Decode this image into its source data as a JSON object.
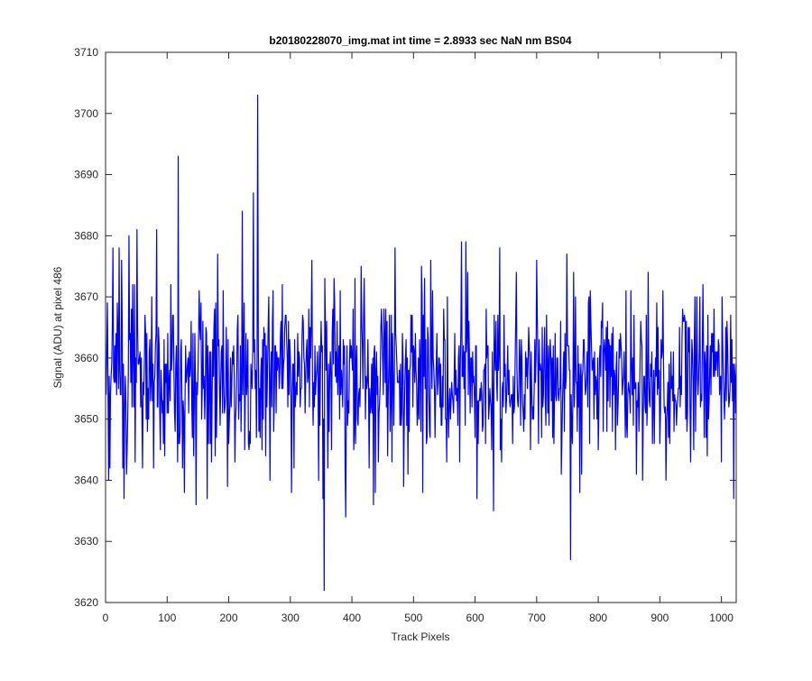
{
  "chart_data": {
    "type": "line",
    "title": "b20180228070_img.mat int time = 2.8933 sec  NaN nm BS04",
    "xlabel": "Track Pixels",
    "ylabel": "Signal (ADU) at pixel 486",
    "xlim": [
      0,
      1024
    ],
    "ylim": [
      3620,
      3710
    ],
    "x_ticks": [
      "0",
      "100",
      "200",
      "300",
      "400",
      "500",
      "600",
      "700",
      "800",
      "900",
      "1000"
    ],
    "y_ticks": [
      "3620",
      "3630",
      "3640",
      "3650",
      "3660",
      "3670",
      "3680",
      "3690",
      "3700",
      "3710"
    ],
    "grid": false,
    "legend": "none",
    "line_color": "#0000ff",
    "n_points": 1024,
    "x_start": 1,
    "x_step": 1,
    "summary": {
      "mean": 3657,
      "min": 3622,
      "max": 3703
    },
    "notable_points": [
      {
        "x": 3,
        "y": 3669
      },
      {
        "x": 7,
        "y": 3642
      },
      {
        "x": 12,
        "y": 3678
      },
      {
        "x": 22,
        "y": 3678
      },
      {
        "x": 30,
        "y": 3637
      },
      {
        "x": 38,
        "y": 3680
      },
      {
        "x": 51,
        "y": 3681
      },
      {
        "x": 60,
        "y": 3642
      },
      {
        "x": 83,
        "y": 3681
      },
      {
        "x": 118,
        "y": 3693
      },
      {
        "x": 128,
        "y": 3638
      },
      {
        "x": 147,
        "y": 3636
      },
      {
        "x": 165,
        "y": 3637
      },
      {
        "x": 222,
        "y": 3684
      },
      {
        "x": 240,
        "y": 3687
      },
      {
        "x": 247,
        "y": 3703
      },
      {
        "x": 267,
        "y": 3640
      },
      {
        "x": 302,
        "y": 3638
      },
      {
        "x": 335,
        "y": 3676
      },
      {
        "x": 355,
        "y": 3622
      },
      {
        "x": 390,
        "y": 3634
      },
      {
        "x": 420,
        "y": 3673
      },
      {
        "x": 435,
        "y": 3636
      },
      {
        "x": 470,
        "y": 3678
      },
      {
        "x": 515,
        "y": 3638
      },
      {
        "x": 578,
        "y": 3679
      },
      {
        "x": 585,
        "y": 3679
      },
      {
        "x": 630,
        "y": 3635
      },
      {
        "x": 640,
        "y": 3678
      },
      {
        "x": 700,
        "y": 3676
      },
      {
        "x": 755,
        "y": 3627
      },
      {
        "x": 770,
        "y": 3638
      },
      {
        "x": 845,
        "y": 3671
      },
      {
        "x": 862,
        "y": 3641
      },
      {
        "x": 910,
        "y": 3640
      },
      {
        "x": 950,
        "y": 3643
      },
      {
        "x": 965,
        "y": 3670
      },
      {
        "x": 1015,
        "y": 3667
      }
    ]
  }
}
